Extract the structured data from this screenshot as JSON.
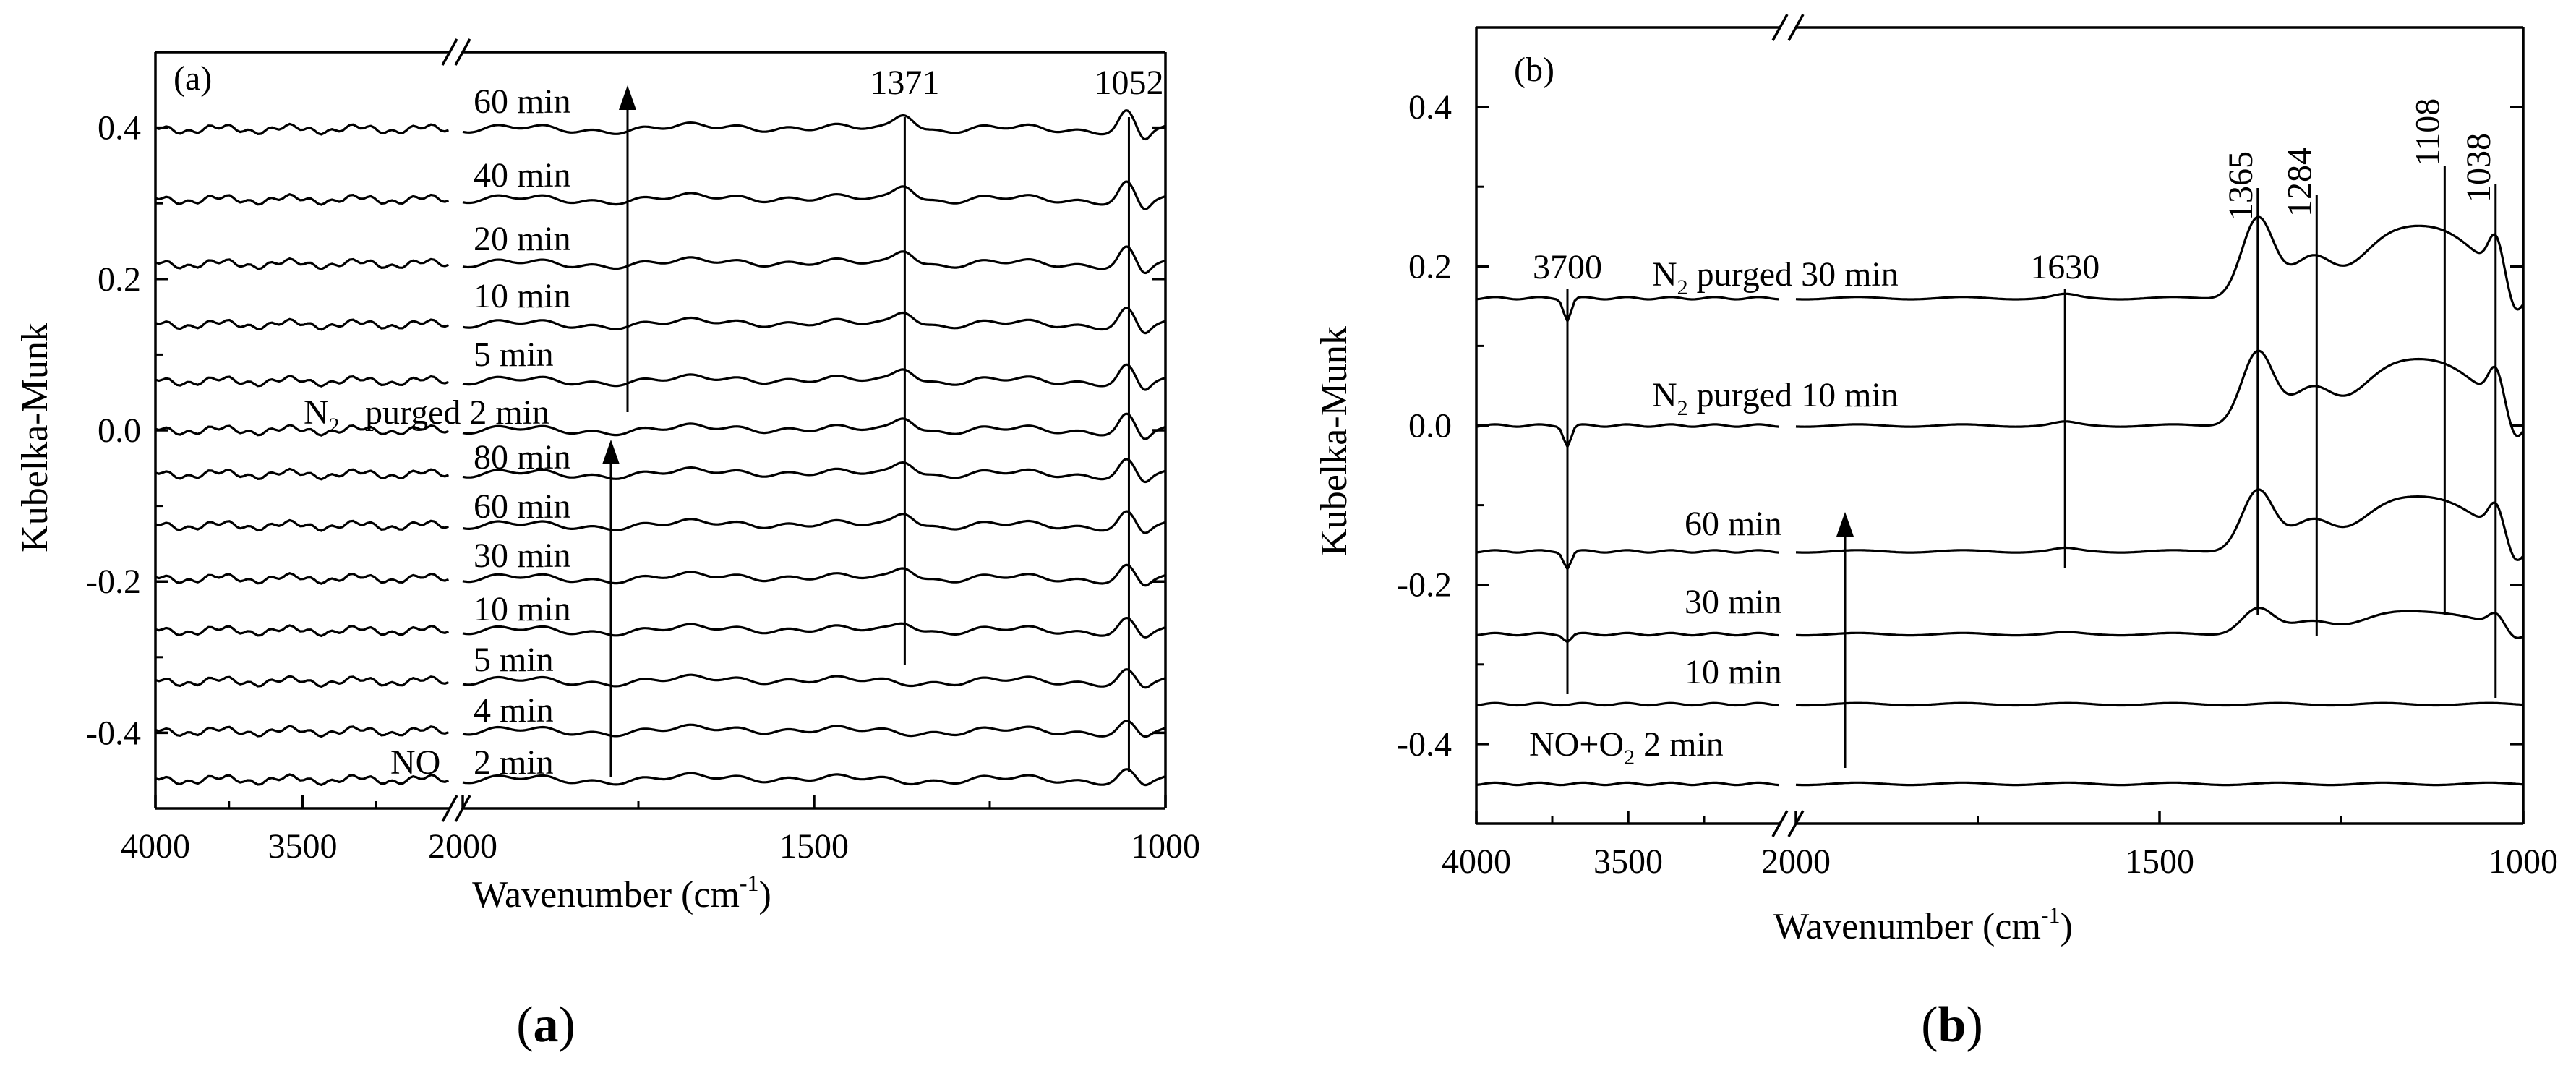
{
  "chart_data": [
    {
      "type": "line",
      "panel_label": "(a)",
      "caption_letter": "a",
      "xlabel_base": "Wavenumber (cm",
      "xlabel_sup": "-1",
      "xlabel_close": ")",
      "ylabel": "Kubelka-Munk",
      "xlim": [
        4000,
        1000
      ],
      "axis_break": [
        3000,
        2000
      ],
      "ylim": [
        -0.5,
        0.5
      ],
      "xticks": [
        4000,
        3500,
        2000,
        1500,
        1000
      ],
      "xtick_labels": [
        "4000",
        "3500",
        "2000",
        "1500",
        "1000"
      ],
      "yticks": [
        0.4,
        0.2,
        0.0,
        -0.2,
        -0.4
      ],
      "ytick_labels": [
        "0.4",
        "0.2",
        "0.0",
        "-0.2",
        "-0.4"
      ],
      "traces": [
        {
          "name": "NO 2 min",
          "prefix": "NO",
          "label": "2 min",
          "offset": -0.462,
          "peak_1371": 0.0,
          "peak_1052": 0.012
        },
        {
          "name": "NO 4 min",
          "label": "4 min",
          "offset": -0.398,
          "peak_1371": 0.0,
          "peak_1052": 0.012
        },
        {
          "name": "NO 5 min",
          "label": "5 min",
          "offset": -0.332,
          "peak_1371": 0.0,
          "peak_1052": 0.014
        },
        {
          "name": "NO 10 min",
          "label": "10 min",
          "offset": -0.265,
          "peak_1371": 0.014,
          "peak_1052": 0.015
        },
        {
          "name": "NO 30 min",
          "label": "30 min",
          "offset": -0.196,
          "peak_1371": 0.018,
          "peak_1052": 0.016
        },
        {
          "name": "NO 60 min",
          "label": "60 min",
          "offset": -0.126,
          "peak_1371": 0.02,
          "peak_1052": 0.017
        },
        {
          "name": "NO 80 min",
          "label": "80 min",
          "offset": -0.058,
          "peak_1371": 0.02,
          "peak_1052": 0.018
        },
        {
          "name": "N2 purged 2 min",
          "prefix": "N",
          "prefix_sub": "2",
          "label": "purged 2 min",
          "offset": 0.0,
          "peak_1371": 0.02,
          "peak_1052": 0.02
        },
        {
          "name": "N2 purged 5 min",
          "label": "5 min",
          "offset": 0.065,
          "peak_1371": 0.02,
          "peak_1052": 0.02
        },
        {
          "name": "N2 purged 10 min",
          "label": "10 min",
          "offset": 0.14,
          "peak_1371": 0.02,
          "peak_1052": 0.02
        },
        {
          "name": "N2 purged 20 min",
          "label": "20 min",
          "offset": 0.22,
          "peak_1371": 0.021,
          "peak_1052": 0.021
        },
        {
          "name": "N2 purged 40 min",
          "label": "40 min",
          "offset": 0.305,
          "peak_1371": 0.022,
          "peak_1052": 0.022
        },
        {
          "name": "N2 purged 60 min",
          "label": "60 min",
          "offset": 0.398,
          "peak_1371": 0.023,
          "peak_1052": 0.023
        }
      ],
      "peak_annotations": [
        {
          "wavenumber": 1371,
          "label": "1371"
        },
        {
          "wavenumber": 1052,
          "label": "1052"
        }
      ]
    },
    {
      "type": "line",
      "panel_label": "(b)",
      "caption_letter": "b",
      "xlabel_base": "Wavenumber (cm",
      "xlabel_sup": "-1",
      "xlabel_close": ")",
      "ylabel": "Kubelka-Munk",
      "xlim": [
        4000,
        1000
      ],
      "axis_break": [
        3000,
        2000
      ],
      "ylim": [
        -0.5,
        0.5
      ],
      "xticks": [
        4000,
        3500,
        2000,
        1500,
        1000
      ],
      "xtick_labels": [
        "4000",
        "3500",
        "2000",
        "1500",
        "1000"
      ],
      "yticks": [
        0.4,
        0.2,
        0.0,
        -0.2,
        -0.4
      ],
      "ytick_labels": [
        "0.4",
        "0.2",
        "0.0",
        "-0.2",
        "-0.4"
      ],
      "traces": [
        {
          "name": "NO+O2 2 min",
          "prefix": "NO+O",
          "prefix_sub": "2",
          "label": "2 min",
          "offset": -0.45,
          "scale": 0.0
        },
        {
          "name": "NO+O2 10 min",
          "label": "10 min",
          "offset": -0.35,
          "scale": 0.0
        },
        {
          "name": "NO+O2 30 min",
          "label": "30 min",
          "offset": -0.262,
          "scale": 0.32
        },
        {
          "name": "NO+O2 60 min",
          "label": "60 min",
          "offset": -0.158,
          "scale": 0.76
        },
        {
          "name": "N2 purged 10 min",
          "prefix": "N",
          "prefix_sub": "2",
          "label": "purged 10 min",
          "offset": 0.0,
          "scale": 0.92
        },
        {
          "name": "N2 purged 30 min",
          "prefix": "N",
          "prefix_sub": "2",
          "label": "purged 30 min",
          "offset": 0.16,
          "scale": 1.0
        }
      ],
      "peak_annotations": [
        {
          "wavenumber": 3700,
          "label": "3700"
        },
        {
          "wavenumber": 1630,
          "label": "1630"
        },
        {
          "wavenumber": 1365,
          "label": "1365"
        },
        {
          "wavenumber": 1284,
          "label": "1284"
        },
        {
          "wavenumber": 1108,
          "label": "1108"
        },
        {
          "wavenumber": 1038,
          "label": "1038"
        }
      ]
    }
  ]
}
